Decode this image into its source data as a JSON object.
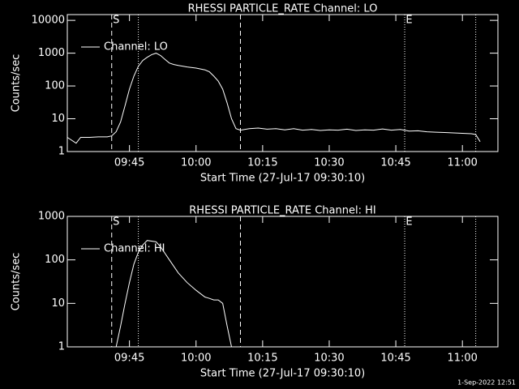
{
  "footer": "1-Sep-2022 12:51",
  "chart_data": [
    {
      "type": "line",
      "title": "RHESSI PARTICLE_RATE Channel: LO",
      "xlabel": "Start Time (27-Jul-17 09:30:10)",
      "ylabel": "Counts/sec",
      "log_y": true,
      "legend": "upper left",
      "background": "#000000",
      "xlim": [
        "09:31",
        "11:08"
      ],
      "xticks": [
        "09:45",
        "10:00",
        "10:15",
        "10:30",
        "10:45",
        "11:00"
      ],
      "ylim": [
        1,
        15000
      ],
      "yticks": [
        1,
        10,
        100,
        1000,
        10000
      ],
      "x": [
        "09:31",
        "09:33",
        "09:34",
        "09:36",
        "09:38",
        "09:40",
        "09:41",
        "09:42",
        "09:43",
        "09:44",
        "09:45",
        "09:46",
        "09:47",
        "09:48",
        "09:49",
        "09:50",
        "09:51",
        "09:52",
        "09:53",
        "09:54",
        "09:55",
        "09:56",
        "09:58",
        "10:00",
        "10:02",
        "10:03",
        "10:04",
        "10:05",
        "10:06",
        "10:07",
        "10:08",
        "10:09",
        "10:10",
        "10:12",
        "10:14",
        "10:16",
        "10:18",
        "10:20",
        "10:22",
        "10:24",
        "10:26",
        "10:28",
        "10:30",
        "10:32",
        "10:34",
        "10:36",
        "10:38",
        "10:40",
        "10:42",
        "10:44",
        "10:46",
        "10:48",
        "10:50",
        "10:52",
        "10:54",
        "10:56",
        "10:58",
        "11:00",
        "11:02",
        "11:03",
        "11:04"
      ],
      "series": [
        {
          "name": "Channel: LO",
          "color": "#ffffff",
          "values": [
            2.7,
            1.8,
            2.7,
            2.7,
            2.8,
            2.8,
            3,
            4,
            8,
            25,
            80,
            200,
            400,
            600,
            750,
            900,
            1000,
            850,
            650,
            500,
            450,
            420,
            380,
            350,
            310,
            270,
            200,
            140,
            80,
            30,
            10,
            5,
            4.5,
            5,
            5.2,
            4.8,
            5,
            4.6,
            5,
            4.5,
            4.7,
            4.4,
            4.6,
            4.5,
            4.8,
            4.4,
            4.6,
            4.5,
            4.9,
            4.5,
            4.7,
            4.2,
            4.3,
            4,
            3.9,
            3.8,
            3.7,
            3.6,
            3.5,
            3.3,
            2
          ]
        }
      ],
      "markers": [
        {
          "x": "09:41",
          "style": "dashed"
        },
        {
          "x": "09:47",
          "style": "dotted"
        },
        {
          "x": "10:10",
          "style": "dashed"
        },
        {
          "x": "10:47",
          "style": "dotted"
        },
        {
          "x": "11:03",
          "style": "dotted"
        }
      ],
      "annotations": [
        {
          "text": "S",
          "x": "09:42"
        },
        {
          "text": "E",
          "x": "10:48"
        }
      ]
    },
    {
      "type": "line",
      "title": "RHESSI PARTICLE_RATE Channel: HI",
      "xlabel": "Start Time (27-Jul-17 09:30:10)",
      "ylabel": "Counts/sec",
      "log_y": true,
      "legend": "upper left",
      "background": "#000000",
      "xlim": [
        "09:31",
        "11:08"
      ],
      "xticks": [
        "09:45",
        "10:00",
        "10:15",
        "10:30",
        "10:45",
        "11:00"
      ],
      "ylim": [
        1,
        1000
      ],
      "yticks": [
        1,
        10,
        100,
        1000
      ],
      "x": [
        "09:42",
        "09:43",
        "09:44",
        "09:45",
        "09:46",
        "09:47",
        "09:48",
        "09:49",
        "09:51",
        "09:52",
        "09:54",
        "09:56",
        "09:58",
        "10:00",
        "10:02",
        "10:03",
        "10:04",
        "10:05",
        "10:06",
        "10:07",
        "10:08"
      ],
      "series": [
        {
          "name": "Channel: HI",
          "color": "#ffffff",
          "values": [
            1,
            3,
            10,
            30,
            80,
            150,
            220,
            280,
            260,
            200,
            100,
            50,
            30,
            20,
            14,
            13,
            12,
            12,
            10,
            3,
            1
          ]
        }
      ],
      "markers": [
        {
          "x": "09:41",
          "style": "dashed"
        },
        {
          "x": "09:47",
          "style": "dotted"
        },
        {
          "x": "10:10",
          "style": "dashed"
        },
        {
          "x": "10:47",
          "style": "dotted"
        },
        {
          "x": "11:03",
          "style": "dotted"
        }
      ],
      "annotations": [
        {
          "text": "S",
          "x": "09:42"
        },
        {
          "text": "E",
          "x": "10:48"
        }
      ]
    }
  ]
}
